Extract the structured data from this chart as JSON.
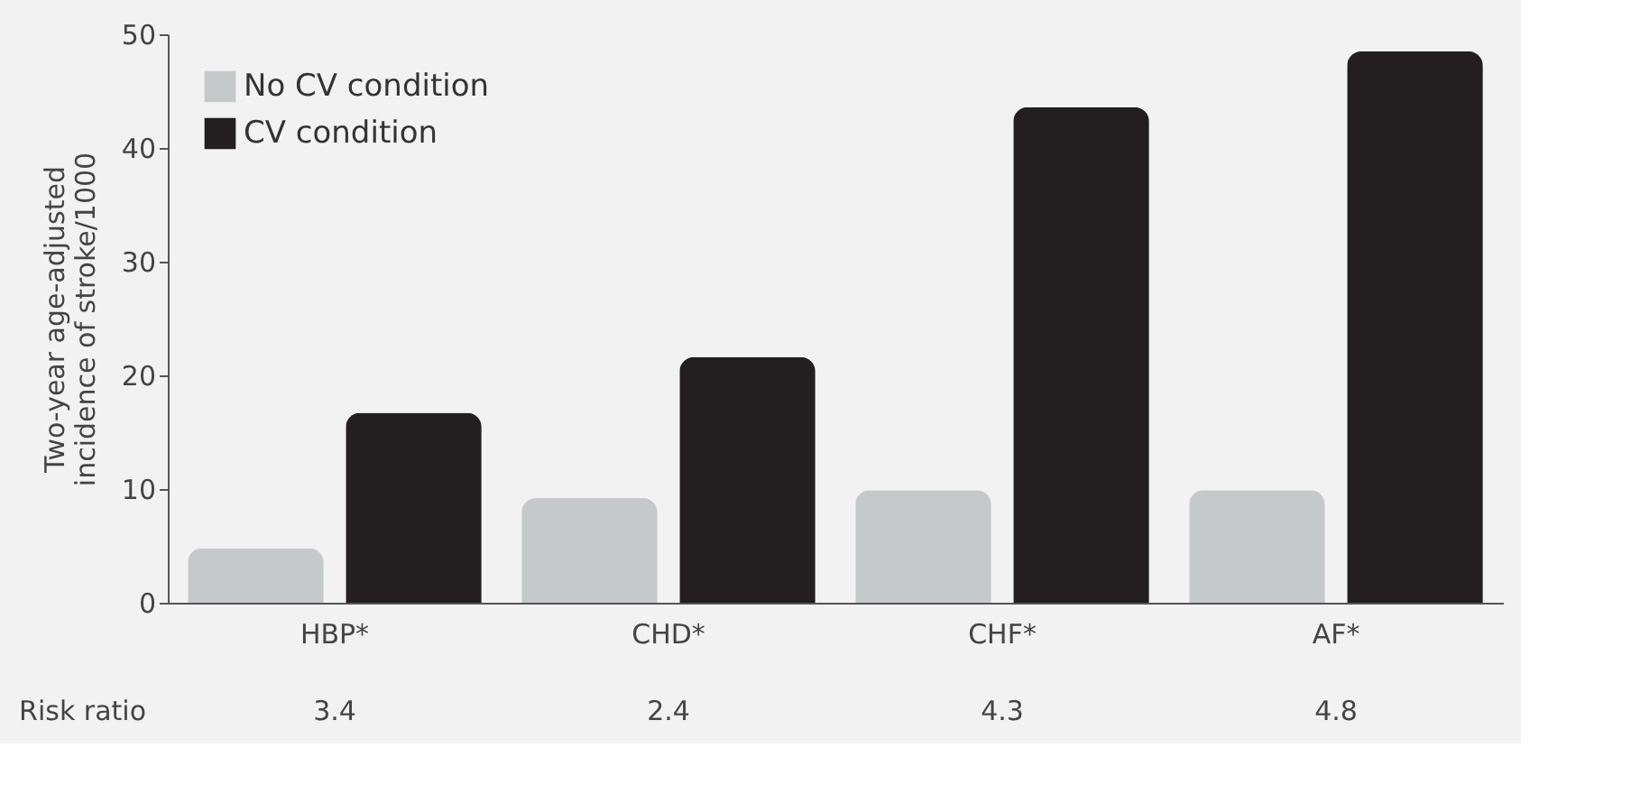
{
  "chart_data": {
    "type": "bar",
    "ylabel": "Two-year age-adjusted\nincidence of stroke/1000",
    "categories": [
      "HBP*",
      "CHD*",
      "CHF*",
      "AF*"
    ],
    "series": [
      {
        "name": "No CV condition",
        "color": "#c6c9ca",
        "values": [
          4.8,
          9.2,
          9.9,
          9.9
        ]
      },
      {
        "name": "CV condition",
        "color": "#231f20",
        "values": [
          16.7,
          21.6,
          43.6,
          48.5
        ]
      }
    ],
    "ylim": [
      0,
      50
    ],
    "yticks": [
      0,
      10,
      20,
      30,
      40,
      50
    ],
    "grid": false,
    "legend": "top left",
    "annotations": [
      "Risk ratio",
      "3.4",
      "2.4",
      "4.3",
      "4.8"
    ]
  }
}
